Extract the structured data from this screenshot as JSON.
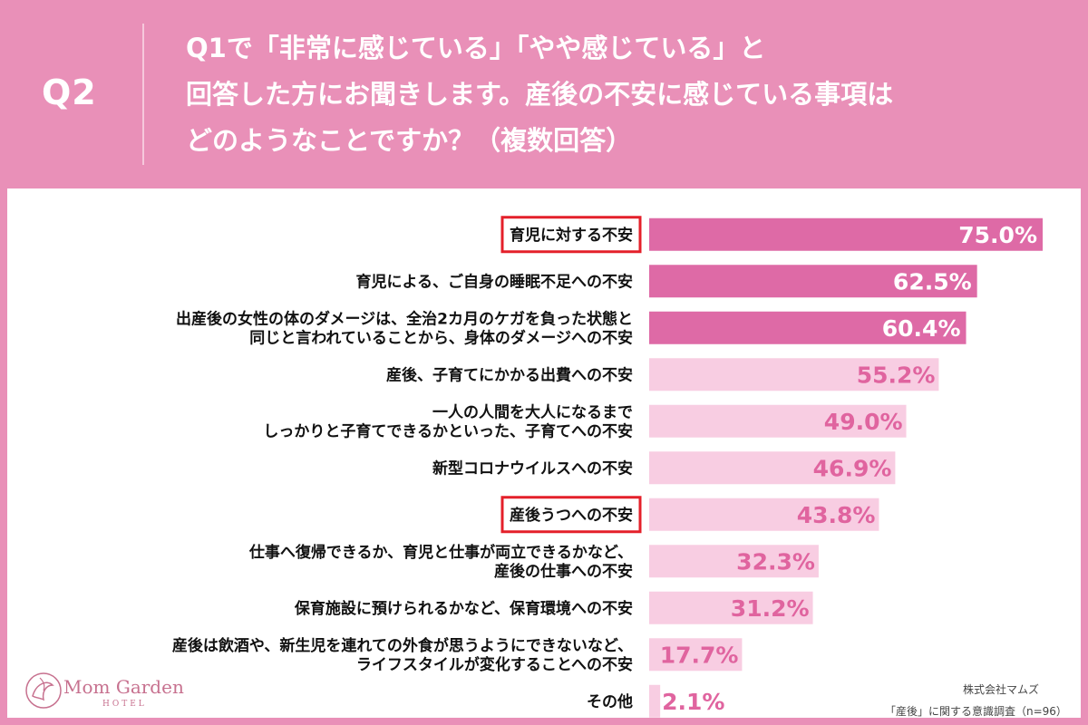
{
  "header": {
    "q_label": "Q2",
    "question_lines": [
      "Q1で「非常に感じている」「やや感じている」と",
      "回答した方にお聞きします。産後の不安に感じている事項は",
      "どのようなことですか？（複数回答）"
    ]
  },
  "chart_data": {
    "type": "bar",
    "orientation": "horizontal",
    "unit": "%",
    "xlim": [
      0,
      100
    ],
    "categories": [
      [
        "育児に対する不安"
      ],
      [
        "育児による、ご自身の睡眠不足への不安"
      ],
      [
        "出産後の女性の体のダメージは、全治2カ月のケガを負った状態と",
        "同じと言われていることから、身体のダメージへの不安"
      ],
      [
        "産後、子育てにかかる出費への不安"
      ],
      [
        "一人の人間を大人になるまで",
        "しっかりと子育てできるかといった、子育てへの不安"
      ],
      [
        "新型コロナウイルスへの不安"
      ],
      [
        "産後うつへの不安"
      ],
      [
        "仕事へ復帰できるか、育児と仕事が両立できるかなど、",
        "産後の仕事への不安"
      ],
      [
        "保育施設に預けられるかなど、保育環境への不安"
      ],
      [
        "産後は飲酒や、新生児を連れての外食が思うようにできないなど、",
        "ライフスタイルが変化することへの不安"
      ],
      [
        "その他"
      ]
    ],
    "values": [
      75.0,
      62.5,
      60.4,
      55.2,
      49.0,
      46.9,
      43.8,
      32.3,
      31.2,
      17.7,
      2.1
    ],
    "value_labels": [
      "75.0%",
      "62.5%",
      "60.4%",
      "55.2%",
      "49.0%",
      "46.9%",
      "43.8%",
      "32.3%",
      "31.2%",
      "17.7%",
      "2.1%"
    ],
    "highlighted_top": 3,
    "boxed_categories": [
      0,
      6
    ],
    "grid": false,
    "colors": {
      "strong_bar": "#de6aa6",
      "light_bar": "#f8cde2",
      "strong_text": "#ffffff",
      "light_text": "#e0649f",
      "box": "#e4202a"
    }
  },
  "logo": {
    "name": "Mom Garden",
    "sub": "HOTEL"
  },
  "footer": {
    "company": "株式会社マムズ",
    "survey": "「産後」に関する意識調査（n=96）"
  }
}
